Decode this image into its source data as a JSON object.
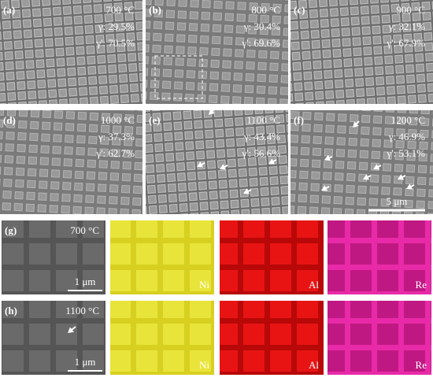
{
  "panels": [
    {
      "label": "(a)",
      "temperature": "700 °C",
      "gamma": "γ: 29.5%",
      "gamma_prime": "γ': 70.5%"
    },
    {
      "label": "(b)",
      "temperature": "800 °C",
      "gamma": "γ: 30.4%",
      "gamma_prime": "γ': 69.6%"
    },
    {
      "label": "(c)",
      "temperature": "900 °C",
      "gamma": "γ: 32.1%",
      "gamma_prime": "γ': 67.9%"
    },
    {
      "label": "(d)",
      "temperature": "1000 °C",
      "gamma": "γ: 37.3%",
      "gamma_prime": "γ': 62.7%"
    },
    {
      "label": "(e)",
      "temperature": "1100 °C",
      "gamma": "γ: 43.4%",
      "gamma_prime": "γ': 56.6%"
    },
    {
      "label": "(f)",
      "temperature": "1200 °C",
      "gamma": "γ: 46.9%",
      "gamma_prime": "γ': 53.1%",
      "scale_bar": "5 μm"
    }
  ],
  "eds_rows": [
    {
      "label": "(g)",
      "temperature": "700 °C",
      "scale_bar": "1 μm",
      "maps": [
        "Ni",
        "Al",
        "Re"
      ]
    },
    {
      "label": "(h)",
      "temperature": "1100 °C",
      "scale_bar": "1 μm",
      "maps": [
        "Ni",
        "Al",
        "Re"
      ]
    }
  ]
}
